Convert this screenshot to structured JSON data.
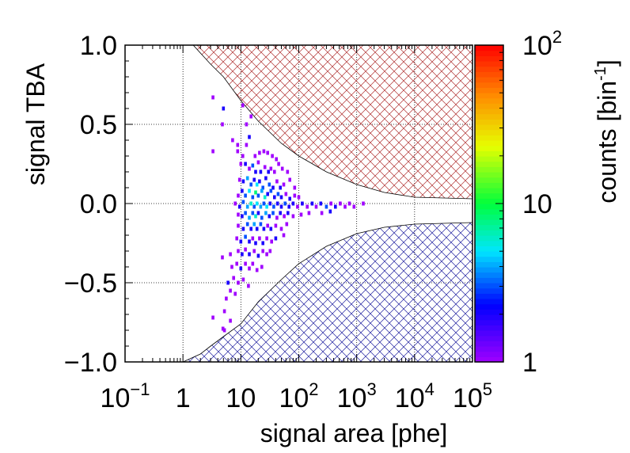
{
  "chart_data": {
    "type": "heatmap",
    "xlabel": "signal area [phe]",
    "ylabel": "signal TBA",
    "colorbar_label_base": "counts [bin",
    "colorbar_label_sup": "-1",
    "colorbar_label_end": "]",
    "x_scale": "log",
    "xlim": [
      0.1,
      100000
    ],
    "ylim": [
      -1.0,
      1.0
    ],
    "grid": true,
    "x_ticks": [
      {
        "value": 0.1,
        "base": "10",
        "sup": "−1"
      },
      {
        "value": 1,
        "base": "1",
        "sup": ""
      },
      {
        "value": 10,
        "base": "10",
        "sup": ""
      },
      {
        "value": 100,
        "base": "10",
        "sup": "2"
      },
      {
        "value": 1000,
        "base": "10",
        "sup": "3"
      },
      {
        "value": 10000,
        "base": "10",
        "sup": "4"
      },
      {
        "value": 100000,
        "base": "10",
        "sup": "5"
      }
    ],
    "y_ticks": [
      {
        "value": 1.0,
        "label": "1.0"
      },
      {
        "value": 0.5,
        "label": "0.5"
      },
      {
        "value": 0.0,
        "label": "0.0"
      },
      {
        "value": -0.5,
        "label": "−0.5"
      },
      {
        "value": -1.0,
        "label": "−1.0"
      }
    ],
    "colorbar": {
      "scale": "log",
      "range": [
        1,
        100
      ],
      "ticks": [
        {
          "value": 100,
          "base": "10",
          "sup": "2"
        },
        {
          "value": 10,
          "base": "10",
          "sup": ""
        },
        {
          "value": 1,
          "base": "1",
          "sup": ""
        }
      ]
    },
    "excluded_regions": [
      {
        "name": "upper",
        "color": "#b03030",
        "boundary": [
          [
            1.5,
            1.0
          ],
          [
            3,
            0.88
          ],
          [
            5,
            0.8
          ],
          [
            10,
            0.65
          ],
          [
            20,
            0.52
          ],
          [
            50,
            0.38
          ],
          [
            100,
            0.3
          ],
          [
            300,
            0.2
          ],
          [
            1000,
            0.12
          ],
          [
            3000,
            0.07
          ],
          [
            10000,
            0.04
          ],
          [
            100000,
            0.03
          ]
        ]
      },
      {
        "name": "lower",
        "color": "#2020a0",
        "boundary": [
          [
            1.0,
            -1.0
          ],
          [
            2,
            -0.95
          ],
          [
            3,
            -0.9
          ],
          [
            5,
            -0.84
          ],
          [
            10,
            -0.76
          ],
          [
            20,
            -0.62
          ],
          [
            50,
            -0.48
          ],
          [
            100,
            -0.38
          ],
          [
            300,
            -0.27
          ],
          [
            1000,
            -0.19
          ],
          [
            3000,
            -0.15
          ],
          [
            10000,
            -0.13
          ],
          [
            100000,
            -0.12
          ]
        ]
      }
    ],
    "cells": [
      [
        3.3,
        0.67,
        1
      ],
      [
        5.0,
        0.6,
        2
      ],
      [
        4.8,
        0.5,
        1
      ],
      [
        7.2,
        0.4,
        1
      ],
      [
        8.8,
        0.37,
        1
      ],
      [
        12.5,
        0.5,
        1
      ],
      [
        10.8,
        0.62,
        1
      ],
      [
        15.0,
        0.55,
        1
      ],
      [
        3.3,
        0.33,
        1
      ],
      [
        8.8,
        0.33,
        1
      ],
      [
        10.8,
        0.3,
        1
      ],
      [
        12.5,
        0.37,
        1
      ],
      [
        14.0,
        0.42,
        2
      ],
      [
        17.6,
        0.3,
        1
      ],
      [
        21.0,
        0.32,
        1
      ],
      [
        25.0,
        0.33,
        1
      ],
      [
        29.0,
        0.32,
        1
      ],
      [
        35.0,
        0.3,
        1
      ],
      [
        41.0,
        0.28,
        1
      ],
      [
        10.0,
        0.25,
        1
      ],
      [
        12.0,
        0.25,
        2
      ],
      [
        14.0,
        0.22,
        1
      ],
      [
        16.0,
        0.24,
        3
      ],
      [
        18.0,
        0.2,
        2
      ],
      [
        20.0,
        0.26,
        1
      ],
      [
        22.0,
        0.2,
        2
      ],
      [
        26.0,
        0.23,
        1
      ],
      [
        30.0,
        0.2,
        2
      ],
      [
        33.0,
        0.22,
        1
      ],
      [
        38.0,
        0.2,
        1
      ],
      [
        45.0,
        0.25,
        1
      ],
      [
        52.0,
        0.22,
        1
      ],
      [
        64.0,
        0.2,
        1
      ],
      [
        9.5,
        0.15,
        1
      ],
      [
        11.0,
        0.14,
        2
      ],
      [
        13.0,
        0.16,
        4
      ],
      [
        15.0,
        0.12,
        3
      ],
      [
        17.0,
        0.15,
        2
      ],
      [
        19.0,
        0.12,
        5
      ],
      [
        21.0,
        0.14,
        2
      ],
      [
        24.0,
        0.1,
        3
      ],
      [
        27.0,
        0.16,
        2
      ],
      [
        31.0,
        0.12,
        3
      ],
      [
        36.0,
        0.1,
        2
      ],
      [
        42.0,
        0.14,
        1
      ],
      [
        48.0,
        0.1,
        2
      ],
      [
        55.0,
        0.12,
        1
      ],
      [
        70.0,
        0.15,
        1
      ],
      [
        85.0,
        0.1,
        1
      ],
      [
        9.0,
        0.05,
        1
      ],
      [
        10.5,
        0.08,
        2
      ],
      [
        12.0,
        0.05,
        3
      ],
      [
        14.0,
        0.08,
        5
      ],
      [
        16.0,
        0.04,
        3
      ],
      [
        18.0,
        0.07,
        8
      ],
      [
        20.0,
        0.05,
        3
      ],
      [
        23.0,
        0.08,
        4
      ],
      [
        26.0,
        0.04,
        6
      ],
      [
        29.0,
        0.06,
        2
      ],
      [
        33.0,
        0.08,
        3
      ],
      [
        38.0,
        0.04,
        2
      ],
      [
        44.0,
        0.06,
        3
      ],
      [
        50.0,
        0.04,
        2
      ],
      [
        60.0,
        0.06,
        1
      ],
      [
        70.0,
        0.03,
        2
      ],
      [
        85.0,
        0.05,
        1
      ],
      [
        100.0,
        0.04,
        1
      ],
      [
        8.0,
        0.0,
        1
      ],
      [
        9.5,
        -0.02,
        2
      ],
      [
        11.0,
        0.01,
        3
      ],
      [
        13.0,
        -0.02,
        4
      ],
      [
        15.0,
        0.0,
        6
      ],
      [
        17.0,
        -0.02,
        3
      ],
      [
        19.0,
        0.0,
        5
      ],
      [
        22.0,
        -0.02,
        4
      ],
      [
        25.0,
        0.0,
        3
      ],
      [
        28.0,
        -0.02,
        5
      ],
      [
        32.0,
        0.0,
        2
      ],
      [
        37.0,
        -0.02,
        3
      ],
      [
        43.0,
        0.0,
        2
      ],
      [
        50.0,
        -0.02,
        2
      ],
      [
        58.0,
        0.0,
        3
      ],
      [
        68.0,
        -0.02,
        2
      ],
      [
        80.0,
        0.0,
        2
      ],
      [
        95.0,
        -0.02,
        1
      ],
      [
        115.0,
        0.0,
        2
      ],
      [
        140.0,
        -0.02,
        1
      ],
      [
        170.0,
        0.0,
        2
      ],
      [
        200.0,
        -0.02,
        1
      ],
      [
        240.0,
        0.0,
        2
      ],
      [
        300.0,
        -0.02,
        3
      ],
      [
        360.0,
        0.0,
        1
      ],
      [
        430.0,
        -0.02,
        2
      ],
      [
        520.0,
        0.0,
        1
      ],
      [
        630.0,
        -0.02,
        1
      ],
      [
        750.0,
        0.0,
        1
      ],
      [
        900.0,
        -0.02,
        1
      ],
      [
        1300.0,
        0.0,
        1
      ],
      [
        9.0,
        -0.07,
        1
      ],
      [
        10.5,
        -0.08,
        2
      ],
      [
        12.0,
        -0.06,
        3
      ],
      [
        14.0,
        -0.09,
        4
      ],
      [
        16.0,
        -0.06,
        3
      ],
      [
        18.0,
        -0.08,
        6
      ],
      [
        20.0,
        -0.06,
        2
      ],
      [
        23.0,
        -0.09,
        3
      ],
      [
        27.0,
        -0.06,
        4
      ],
      [
        31.0,
        -0.08,
        2
      ],
      [
        36.0,
        -0.06,
        3
      ],
      [
        42.0,
        -0.09,
        1
      ],
      [
        48.0,
        -0.06,
        2
      ],
      [
        56.0,
        -0.08,
        1
      ],
      [
        65.0,
        -0.06,
        2
      ],
      [
        80.0,
        -0.08,
        1
      ],
      [
        110.0,
        -0.07,
        1
      ],
      [
        150.0,
        -0.06,
        1
      ],
      [
        250.0,
        -0.06,
        1
      ],
      [
        350.0,
        -0.05,
        2
      ],
      [
        9.0,
        -0.14,
        1
      ],
      [
        11.0,
        -0.16,
        2
      ],
      [
        13.0,
        -0.13,
        3
      ],
      [
        15.0,
        -0.16,
        2
      ],
      [
        17.0,
        -0.13,
        4
      ],
      [
        19.0,
        -0.16,
        2
      ],
      [
        22.0,
        -0.13,
        3
      ],
      [
        25.0,
        -0.16,
        2
      ],
      [
        29.0,
        -0.14,
        1
      ],
      [
        33.0,
        -0.16,
        2
      ],
      [
        40.0,
        -0.14,
        1
      ],
      [
        50.0,
        -0.16,
        1
      ],
      [
        62.0,
        -0.13,
        1
      ],
      [
        8.5,
        -0.22,
        1
      ],
      [
        10.0,
        -0.24,
        2
      ],
      [
        12.0,
        -0.21,
        3
      ],
      [
        14.0,
        -0.24,
        2
      ],
      [
        16.0,
        -0.22,
        1
      ],
      [
        18.0,
        -0.25,
        2
      ],
      [
        21.0,
        -0.22,
        1
      ],
      [
        24.0,
        -0.25,
        2
      ],
      [
        28.0,
        -0.22,
        1
      ],
      [
        34.0,
        -0.24,
        1
      ],
      [
        40.0,
        -0.22,
        2
      ],
      [
        55.0,
        -0.2,
        1
      ],
      [
        9.0,
        -0.3,
        1
      ],
      [
        10.5,
        -0.32,
        2
      ],
      [
        12.0,
        -0.29,
        1
      ],
      [
        14.0,
        -0.32,
        2
      ],
      [
        17.0,
        -0.3,
        1
      ],
      [
        20.0,
        -0.33,
        2
      ],
      [
        24.0,
        -0.3,
        1
      ],
      [
        28.0,
        -0.32,
        1
      ],
      [
        32.0,
        -0.3,
        1
      ],
      [
        4.8,
        -0.34,
        1
      ],
      [
        6.6,
        -0.32,
        1
      ],
      [
        7.0,
        -0.4,
        1
      ],
      [
        8.5,
        -0.38,
        1
      ],
      [
        10.0,
        -0.41,
        2
      ],
      [
        12.0,
        -0.38,
        1
      ],
      [
        14.0,
        -0.41,
        1
      ],
      [
        16.0,
        -0.38,
        1
      ],
      [
        19.0,
        -0.42,
        1
      ],
      [
        23.0,
        -0.4,
        1
      ],
      [
        6.0,
        -0.5,
        2
      ],
      [
        7.5,
        -0.47,
        1
      ],
      [
        9.0,
        -0.5,
        1
      ],
      [
        11.0,
        -0.48,
        1
      ],
      [
        13.5,
        -0.52,
        1
      ],
      [
        6.6,
        -0.55,
        1
      ],
      [
        8.0,
        -0.57,
        1
      ],
      [
        5.6,
        -0.6,
        1
      ],
      [
        5.2,
        -0.68,
        1
      ],
      [
        6.6,
        -0.74,
        1
      ],
      [
        3.3,
        -0.72,
        1
      ],
      [
        4.9,
        -0.79,
        1
      ],
      [
        5.2,
        -0.8,
        1
      ]
    ]
  }
}
